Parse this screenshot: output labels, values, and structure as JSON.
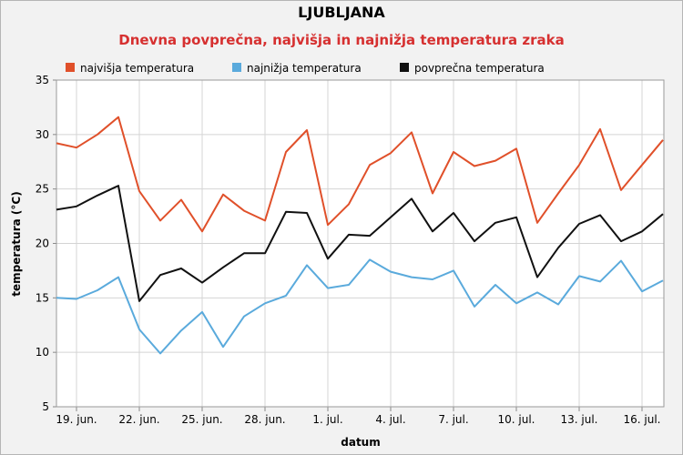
{
  "chart_data": {
    "type": "line",
    "title": "LJUBLJANA",
    "subtitle": "Dnevna povprečna, najvišja in najnižja  temperatura zraka",
    "xlabel": "datum",
    "ylabel": "temperatura (°C)",
    "ylim": [
      5,
      35
    ],
    "yticks": [
      5,
      10,
      15,
      20,
      25,
      30,
      35
    ],
    "grid": true,
    "legend_placement": "top-left",
    "x": [
      "19. jun.",
      "20. jun.",
      "21. jun.",
      "22. jun.",
      "23. jun.",
      "24. jun.",
      "25. jun.",
      "26. jun.",
      "27. jun.",
      "28. jun.",
      "29. jun.",
      "30. jun.",
      "1. jul.",
      "2. jul.",
      "3. jul.",
      "4. jul.",
      "5. jul.",
      "6. jul.",
      "7. jul.",
      "8. jul.",
      "9. jul.",
      "10. jul.",
      "11. jul.",
      "12. jul.",
      "13. jul.",
      "14. jul.",
      "15. jul.",
      "16. jul.",
      "17. jul."
    ],
    "xtick_labels": [
      "19. jun.",
      "22. jun.",
      "25. jun.",
      "28. jun.",
      "1. jul.",
      "4. jul.",
      "7. jul.",
      "10. jul.",
      "13. jul.",
      "16. jul."
    ],
    "series": [
      {
        "name": "najvišja temperatura",
        "color": "#e0502a",
        "values": [
          28.8,
          30.0,
          31.6,
          24.8,
          22.1,
          24.0,
          21.1,
          24.5,
          23.0,
          22.1,
          28.4,
          30.4,
          21.7,
          23.6,
          27.2,
          28.3,
          30.2,
          24.6,
          28.4,
          27.1,
          27.6,
          28.7,
          21.9,
          24.6,
          27.2,
          30.5,
          24.9,
          27.2,
          29.5
        ],
        "start": 29.2
      },
      {
        "name": "najnižja temperatura",
        "color": "#5aaadc",
        "values": [
          14.9,
          15.7,
          16.9,
          12.1,
          9.9,
          12.0,
          13.7,
          10.5,
          13.3,
          14.5,
          15.2,
          18.0,
          15.9,
          16.2,
          18.5,
          17.4,
          16.9,
          16.7,
          17.5,
          14.2,
          16.2,
          14.5,
          15.5,
          14.4,
          17.0,
          16.5,
          18.4,
          15.6,
          16.6
        ],
        "start": 15.0
      },
      {
        "name": "povprečna temperatura",
        "color": "#111111",
        "values": [
          23.4,
          24.4,
          25.3,
          14.7,
          17.1,
          17.7,
          16.4,
          17.8,
          19.1,
          19.1,
          22.9,
          22.8,
          18.6,
          20.8,
          20.7,
          22.4,
          24.1,
          21.1,
          22.8,
          20.2,
          21.9,
          22.4,
          16.9,
          19.6,
          21.8,
          22.6,
          20.2,
          21.1,
          22.7
        ],
        "start": 23.1
      }
    ]
  }
}
